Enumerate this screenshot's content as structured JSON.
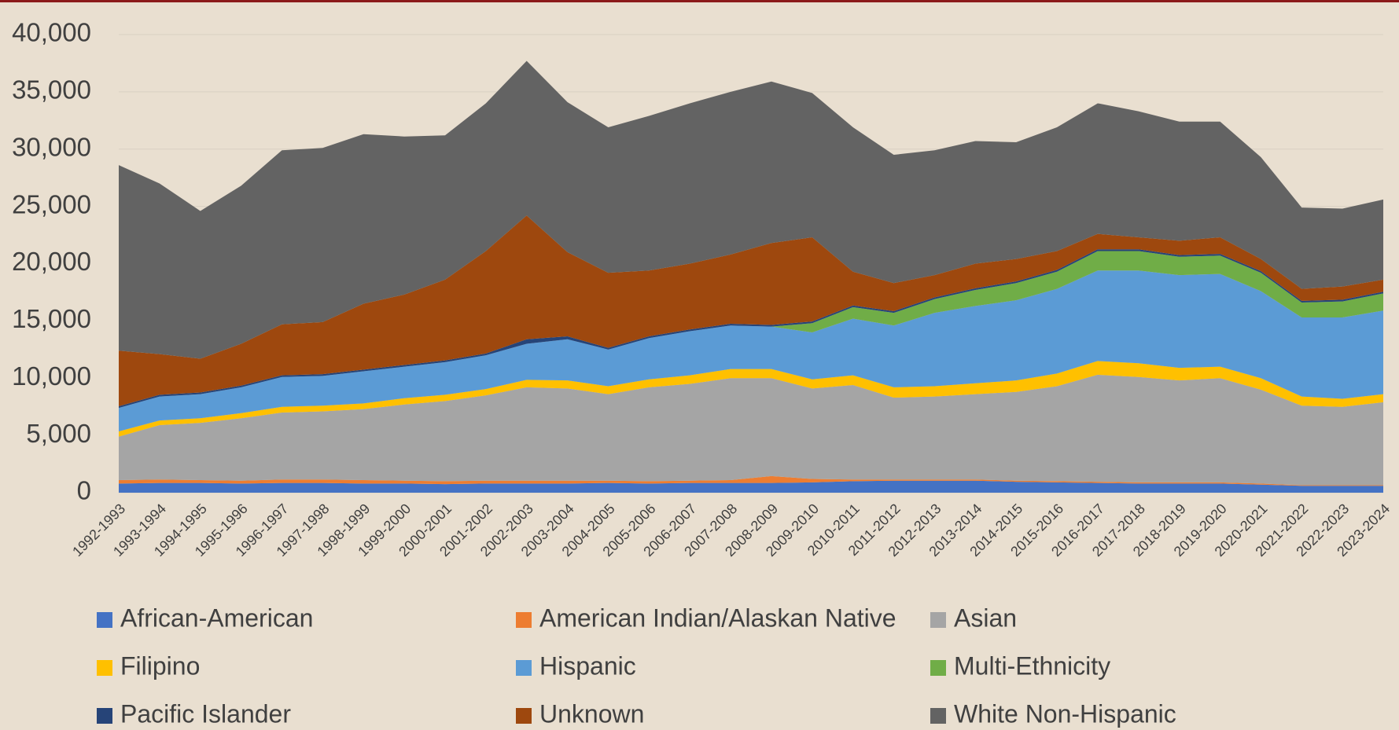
{
  "chart_data": {
    "type": "stacked_area",
    "categories": [
      "1992-1993",
      "1993-1994",
      "1994-1995",
      "1995-1996",
      "1996-1997",
      "1997-1998",
      "1998-1999",
      "1999-2000",
      "2000-2001",
      "2001-2002",
      "2002-2003",
      "2003-2004",
      "2004-2005",
      "2005-2006",
      "2006-2007",
      "2007-2008",
      "2008-2009",
      "2009-2010",
      "2010-2011",
      "2011-2012",
      "2012-2013",
      "2013-2014",
      "2014-2015",
      "2015-2016",
      "2016-2017",
      "2017-2018",
      "2018-2019",
      "2019-2020",
      "2020-2021",
      "2021-2022",
      "2022-2023",
      "2023-2024"
    ],
    "series": [
      {
        "name": "African-American",
        "color": "#4472c4",
        "values": [
          800,
          850,
          850,
          800,
          850,
          850,
          800,
          800,
          750,
          800,
          800,
          800,
          850,
          800,
          850,
          850,
          850,
          900,
          1000,
          1050,
          1050,
          1050,
          950,
          900,
          850,
          800,
          800,
          800,
          700,
          600,
          600,
          600
        ]
      },
      {
        "name": "American Indian/Alaskan Native",
        "color": "#ed7d31",
        "values": [
          300,
          300,
          250,
          250,
          300,
          300,
          300,
          250,
          250,
          250,
          250,
          250,
          200,
          200,
          200,
          250,
          600,
          300,
          150,
          100,
          100,
          100,
          100,
          100,
          100,
          100,
          100,
          100,
          100,
          50,
          50,
          50
        ]
      },
      {
        "name": "Asian",
        "color": "#a5a5a5",
        "values": [
          3800,
          4750,
          5000,
          5450,
          5850,
          5950,
          6200,
          6650,
          7000,
          7450,
          8150,
          8050,
          7550,
          8200,
          8450,
          8900,
          8550,
          7900,
          8250,
          7150,
          7250,
          7450,
          7750,
          8300,
          9350,
          9200,
          8900,
          9100,
          8200,
          6950,
          6850,
          7250
        ]
      },
      {
        "name": "Filipino",
        "color": "#ffc000",
        "values": [
          450,
          400,
          400,
          450,
          500,
          500,
          500,
          550,
          550,
          550,
          650,
          700,
          700,
          700,
          750,
          800,
          800,
          800,
          850,
          900,
          900,
          950,
          1000,
          1100,
          1200,
          1200,
          1100,
          1000,
          1000,
          800,
          700,
          700
        ]
      },
      {
        "name": "Hispanic",
        "color": "#5b9bd5",
        "values": [
          2050,
          2100,
          2100,
          2250,
          2600,
          2600,
          2800,
          2750,
          2850,
          2950,
          3150,
          3600,
          3200,
          3600,
          3850,
          3800,
          3700,
          4100,
          4950,
          5400,
          6400,
          6750,
          7000,
          7400,
          7900,
          8100,
          8100,
          8100,
          7600,
          6900,
          7100,
          7300
        ]
      },
      {
        "name": "Multi-Ethnicity",
        "color": "#70ad47",
        "values": [
          0,
          0,
          0,
          0,
          0,
          0,
          0,
          0,
          0,
          0,
          0,
          0,
          0,
          0,
          0,
          0,
          0,
          800,
          1000,
          1100,
          1200,
          1400,
          1500,
          1500,
          1700,
          1700,
          1600,
          1600,
          1600,
          1300,
          1400,
          1500
        ]
      },
      {
        "name": "Pacific Islander",
        "color": "#264478",
        "values": [
          150,
          150,
          150,
          150,
          150,
          150,
          150,
          150,
          150,
          150,
          400,
          250,
          150,
          150,
          150,
          150,
          150,
          150,
          150,
          150,
          150,
          150,
          150,
          150,
          150,
          150,
          150,
          150,
          150,
          150,
          150,
          150
        ]
      },
      {
        "name": "Unknown",
        "color": "#9e480e",
        "values": [
          4850,
          3550,
          2950,
          3650,
          4450,
          4550,
          5750,
          6150,
          7050,
          8950,
          10800,
          7350,
          6550,
          5750,
          5750,
          6050,
          7150,
          7350,
          2950,
          2450,
          1950,
          2150,
          1950,
          1650,
          1350,
          1050,
          1250,
          1450,
          1050,
          1050,
          1150,
          1050
        ]
      },
      {
        "name": "White Non-Hispanic",
        "color": "#636363",
        "values": [
          16200,
          14900,
          12900,
          13800,
          15200,
          15200,
          14800,
          13800,
          12600,
          12900,
          13500,
          13100,
          12700,
          13500,
          14000,
          14200,
          14100,
          12600,
          12600,
          11200,
          10900,
          10700,
          10200,
          10800,
          11400,
          11000,
          10400,
          10100,
          8900,
          7100,
          6800,
          7000
        ]
      }
    ],
    "ylim": [
      0,
      40000
    ],
    "yticks": [
      0,
      {
        "value": 5000,
        "label": "5,000"
      },
      {
        "value": 10000,
        "label": "10,000"
      },
      {
        "value": 15000,
        "label": "15,000"
      },
      {
        "value": 20000,
        "label": "20,000"
      },
      {
        "value": 25000,
        "label": "25,000"
      },
      {
        "value": 30000,
        "label": "30,000"
      },
      {
        "value": 35000,
        "label": "35,000"
      },
      {
        "value": 40000,
        "label": "40,000"
      }
    ],
    "grid": true,
    "legend": "bottom"
  }
}
